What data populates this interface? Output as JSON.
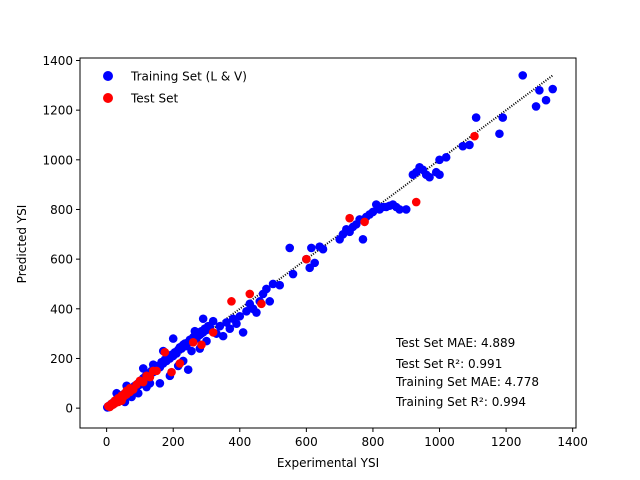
{
  "chart_data": {
    "type": "scatter",
    "title": "",
    "xlabel": "Experimental YSI",
    "ylabel": "Predicted YSI",
    "xlim": [
      -80,
      1410
    ],
    "ylim": [
      -80,
      1410
    ],
    "xticks": [
      0,
      200,
      400,
      600,
      800,
      1000,
      1200,
      1400
    ],
    "yticks": [
      0,
      200,
      400,
      600,
      800,
      1000,
      1200,
      1400
    ],
    "x_tick_labels": [
      "0",
      "200",
      "400",
      "600",
      "800",
      "1000",
      "1200",
      "1400"
    ],
    "y_tick_labels": [
      "0",
      "200",
      "400",
      "600",
      "800",
      "1000",
      "1200",
      "1400"
    ],
    "grid": false,
    "legend_position": "top-left",
    "reference_line": {
      "style": "dotted",
      "color": "#000000",
      "from": [
        0,
        0
      ],
      "to": [
        1340,
        1340
      ]
    },
    "series": [
      {
        "name": "Training Set (L & V)",
        "color": "#0000ff",
        "points": [
          [
            2,
            3
          ],
          [
            4,
            6
          ],
          [
            6,
            4
          ],
          [
            8,
            9
          ],
          [
            10,
            12
          ],
          [
            12,
            10
          ],
          [
            14,
            16
          ],
          [
            16,
            18
          ],
          [
            18,
            14
          ],
          [
            20,
            22
          ],
          [
            22,
            25
          ],
          [
            24,
            20
          ],
          [
            26,
            28
          ],
          [
            28,
            32
          ],
          [
            30,
            26
          ],
          [
            32,
            35
          ],
          [
            34,
            30
          ],
          [
            36,
            40
          ],
          [
            38,
            42
          ],
          [
            40,
            38
          ],
          [
            42,
            45
          ],
          [
            45,
            48
          ],
          [
            48,
            44
          ],
          [
            50,
            55
          ],
          [
            52,
            50
          ],
          [
            55,
            58
          ],
          [
            58,
            62
          ],
          [
            60,
            56
          ],
          [
            62,
            66
          ],
          [
            65,
            70
          ],
          [
            68,
            64
          ],
          [
            70,
            75
          ],
          [
            72,
            78
          ],
          [
            75,
            72
          ],
          [
            78,
            82
          ],
          [
            80,
            85
          ],
          [
            82,
            78
          ],
          [
            85,
            90
          ],
          [
            88,
            92
          ],
          [
            90,
            86
          ],
          [
            92,
            96
          ],
          [
            95,
            100
          ],
          [
            98,
            94
          ],
          [
            100,
            105
          ],
          [
            102,
            110
          ],
          [
            105,
            100
          ],
          [
            108,
            115
          ],
          [
            110,
            120
          ],
          [
            112,
            106
          ],
          [
            115,
            125
          ],
          [
            118,
            130
          ],
          [
            120,
            115
          ],
          [
            125,
            140
          ],
          [
            130,
            135
          ],
          [
            135,
            150
          ],
          [
            140,
            145
          ],
          [
            145,
            160
          ],
          [
            150,
            155
          ],
          [
            155,
            170
          ],
          [
            160,
            165
          ],
          [
            165,
            185
          ],
          [
            170,
            180
          ],
          [
            175,
            195
          ],
          [
            180,
            190
          ],
          [
            185,
            205
          ],
          [
            190,
            200
          ],
          [
            195,
            215
          ],
          [
            200,
            210
          ],
          [
            205,
            225
          ],
          [
            210,
            220
          ],
          [
            215,
            235
          ],
          [
            220,
            245
          ],
          [
            225,
            240
          ],
          [
            230,
            255
          ],
          [
            235,
            260
          ],
          [
            240,
            250
          ],
          [
            245,
            265
          ],
          [
            250,
            275
          ],
          [
            255,
            270
          ],
          [
            260,
            285
          ],
          [
            265,
            290
          ],
          [
            270,
            280
          ],
          [
            275,
            300
          ],
          [
            280,
            295
          ],
          [
            285,
            310
          ],
          [
            290,
            305
          ],
          [
            295,
            320
          ],
          [
            300,
            315
          ],
          [
            305,
            330
          ],
          [
            310,
            325
          ],
          [
            30,
            60
          ],
          [
            40,
            30
          ],
          [
            55,
            25
          ],
          [
            60,
            90
          ],
          [
            75,
            45
          ],
          [
            95,
            60
          ],
          [
            110,
            160
          ],
          [
            120,
            85
          ],
          [
            130,
            100
          ],
          [
            140,
            175
          ],
          [
            160,
            100
          ],
          [
            170,
            230
          ],
          [
            190,
            130
          ],
          [
            200,
            280
          ],
          [
            215,
            170
          ],
          [
            230,
            190
          ],
          [
            245,
            155
          ],
          [
            255,
            230
          ],
          [
            265,
            310
          ],
          [
            280,
            240
          ],
          [
            290,
            360
          ],
          [
            300,
            270
          ],
          [
            320,
            350
          ],
          [
            330,
            300
          ],
          [
            340,
            330
          ],
          [
            350,
            290
          ],
          [
            360,
            345
          ],
          [
            370,
            320
          ],
          [
            380,
            360
          ],
          [
            390,
            340
          ],
          [
            400,
            370
          ],
          [
            410,
            305
          ],
          [
            420,
            390
          ],
          [
            430,
            420
          ],
          [
            440,
            400
          ],
          [
            450,
            385
          ],
          [
            460,
            430
          ],
          [
            470,
            460
          ],
          [
            480,
            480
          ],
          [
            490,
            430
          ],
          [
            500,
            500
          ],
          [
            520,
            495
          ],
          [
            550,
            645
          ],
          [
            560,
            540
          ],
          [
            600,
            600
          ],
          [
            610,
            565
          ],
          [
            615,
            645
          ],
          [
            625,
            585
          ],
          [
            640,
            650
          ],
          [
            650,
            640
          ],
          [
            700,
            680
          ],
          [
            710,
            700
          ],
          [
            720,
            720
          ],
          [
            730,
            710
          ],
          [
            740,
            730
          ],
          [
            750,
            740
          ],
          [
            760,
            760
          ],
          [
            770,
            680
          ],
          [
            780,
            770
          ],
          [
            790,
            780
          ],
          [
            800,
            790
          ],
          [
            810,
            820
          ],
          [
            820,
            800
          ],
          [
            830,
            810
          ],
          [
            840,
            810
          ],
          [
            850,
            815
          ],
          [
            860,
            820
          ],
          [
            870,
            810
          ],
          [
            880,
            800
          ],
          [
            900,
            800
          ],
          [
            920,
            940
          ],
          [
            930,
            950
          ],
          [
            940,
            970
          ],
          [
            950,
            960
          ],
          [
            960,
            940
          ],
          [
            970,
            930
          ],
          [
            990,
            950
          ],
          [
            1000,
            940
          ],
          [
            1020,
            1010
          ],
          [
            1070,
            1055
          ],
          [
            1090,
            1060
          ],
          [
            1110,
            1170
          ],
          [
            1180,
            1105
          ],
          [
            1190,
            1170
          ],
          [
            1250,
            1340
          ],
          [
            1290,
            1215
          ],
          [
            1300,
            1280
          ],
          [
            1320,
            1240
          ],
          [
            1340,
            1285
          ],
          [
            1000,
            1000
          ]
        ]
      },
      {
        "name": "Test Set",
        "color": "#ff0000",
        "points": [
          [
            5,
            8
          ],
          [
            10,
            5
          ],
          [
            15,
            18
          ],
          [
            20,
            15
          ],
          [
            25,
            30
          ],
          [
            30,
            25
          ],
          [
            35,
            40
          ],
          [
            40,
            35
          ],
          [
            45,
            50
          ],
          [
            50,
            45
          ],
          [
            55,
            60
          ],
          [
            60,
            55
          ],
          [
            70,
            65
          ],
          [
            80,
            75
          ],
          [
            90,
            95
          ],
          [
            100,
            110
          ],
          [
            110,
            105
          ],
          [
            120,
            130
          ],
          [
            130,
            125
          ],
          [
            140,
            150
          ],
          [
            175,
            225
          ],
          [
            195,
            145
          ],
          [
            220,
            180
          ],
          [
            260,
            265
          ],
          [
            285,
            255
          ],
          [
            320,
            305
          ],
          [
            375,
            430
          ],
          [
            430,
            460
          ],
          [
            465,
            420
          ],
          [
            600,
            600
          ],
          [
            730,
            765
          ],
          [
            775,
            750
          ],
          [
            930,
            830
          ],
          [
            1105,
            1095
          ],
          [
            150,
            150
          ],
          [
            70,
            80
          ],
          [
            35,
            25
          ],
          [
            60,
            70
          ],
          [
            45,
            30
          ],
          [
            25,
            20
          ]
        ]
      }
    ],
    "annotations": [
      "Test Set MAE: 4.889",
      "Test Set R²: 0.991",
      "Training Set MAE: 4.778",
      "Training Set R²: 0.994"
    ]
  }
}
